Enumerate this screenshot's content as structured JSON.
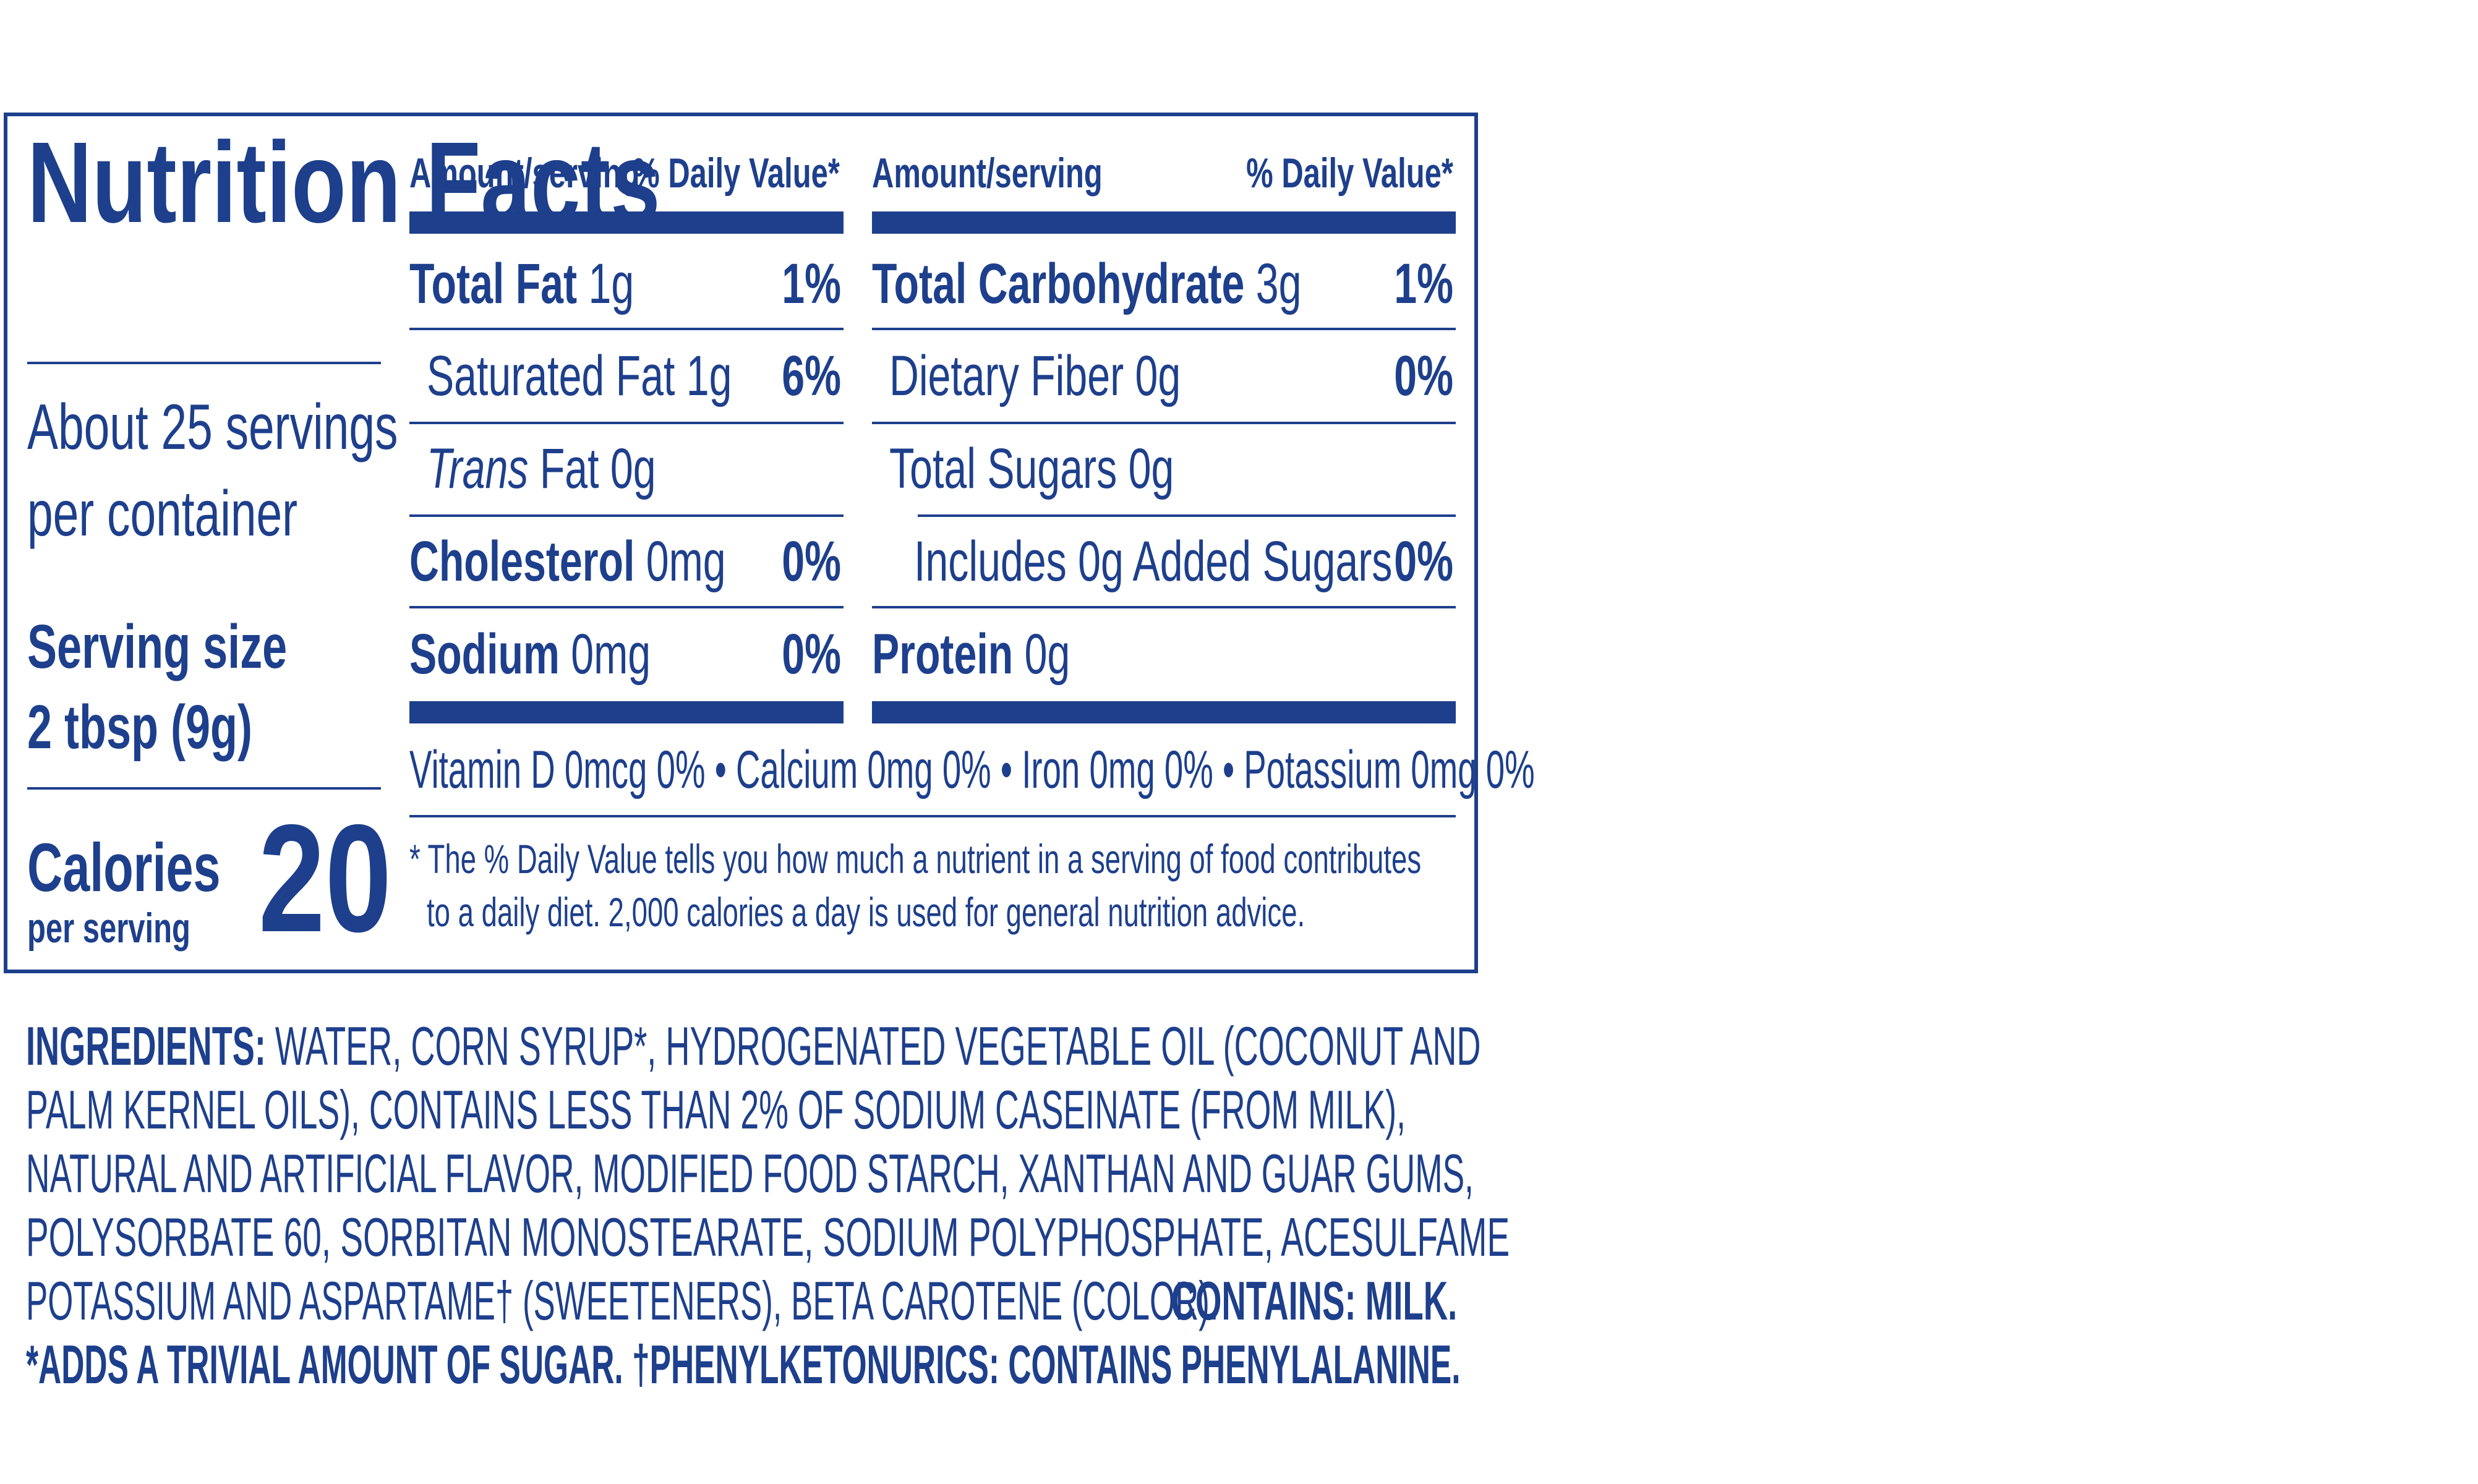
{
  "title": "Nutrition Facts",
  "servings": {
    "line1": "About 25 servings",
    "line2": "per container",
    "size_label": "Serving size",
    "size_value": "2 tbsp (9g)"
  },
  "calories": {
    "label": "Calories",
    "sub": "per serving",
    "value": "20"
  },
  "headers": {
    "amount": "Amount/serving",
    "daily_value": "% Daily Value*"
  },
  "left_rows": [
    {
      "name": "Total Fat",
      "amount": "1g",
      "pct": "1%"
    },
    {
      "name": "Saturated Fat 1g",
      "amount": "",
      "pct": "6%"
    },
    {
      "name": "Trans",
      "amount": "Fat 0g",
      "pct": ""
    },
    {
      "name": "Cholesterol",
      "amount": "0mg",
      "pct": "0%"
    },
    {
      "name": "Sodium",
      "amount": "0mg",
      "pct": "0%"
    }
  ],
  "right_rows": [
    {
      "name": "Total Carbohydrate",
      "amount": "3g",
      "pct": "1%"
    },
    {
      "name": "Dietary Fiber 0g",
      "amount": "",
      "pct": "0%"
    },
    {
      "name": "Total Sugars 0g",
      "amount": "",
      "pct": ""
    },
    {
      "name": "Includes 0g Added Sugars",
      "amount": "",
      "pct": "0%"
    },
    {
      "name": "Protein",
      "amount": "0g",
      "pct": ""
    }
  ],
  "vitamins": "Vitamin D 0mcg 0% • Calcium 0mg 0% • Iron 0mg 0% • Potassium 0mg 0%",
  "footnote": {
    "line1": "* The % Daily Value tells you how much a nutrient in a serving of food contributes",
    "line2": "to a daily diet. 2,000 calories a day is used for general nutrition advice."
  },
  "ingredients": {
    "label": "INGREDIENTS:",
    "line1": "WATER, CORN SYRUP*, HYDROGENATED VEGETABLE OIL (COCONUT AND",
    "line2": "PALM KERNEL OILS), CONTAINS LESS THAN 2% OF SODIUM CASEINATE (FROM MILK),",
    "line3": "NATURAL AND ARTIFICIAL FLAVOR, MODIFIED FOOD STARCH, XANTHAN AND GUAR GUMS,",
    "line4": "POLYSORBATE 60, SORBITAN MONOSTEARATE, SODIUM POLYPHOSPHATE, ACESULFAME",
    "line5": "POTASSIUM AND ASPARTAME† (SWEETENERS), BETA CAROTENE (COLOR).",
    "contains": "CONTAINS: MILK.",
    "line6": "*ADDS A TRIVIAL AMOUNT OF SUGAR. †PHENYLKETONURICS: CONTAINS PHENYLALANINE."
  },
  "colors": {
    "ink": "#1d3f8c",
    "background": "#ffffff"
  }
}
